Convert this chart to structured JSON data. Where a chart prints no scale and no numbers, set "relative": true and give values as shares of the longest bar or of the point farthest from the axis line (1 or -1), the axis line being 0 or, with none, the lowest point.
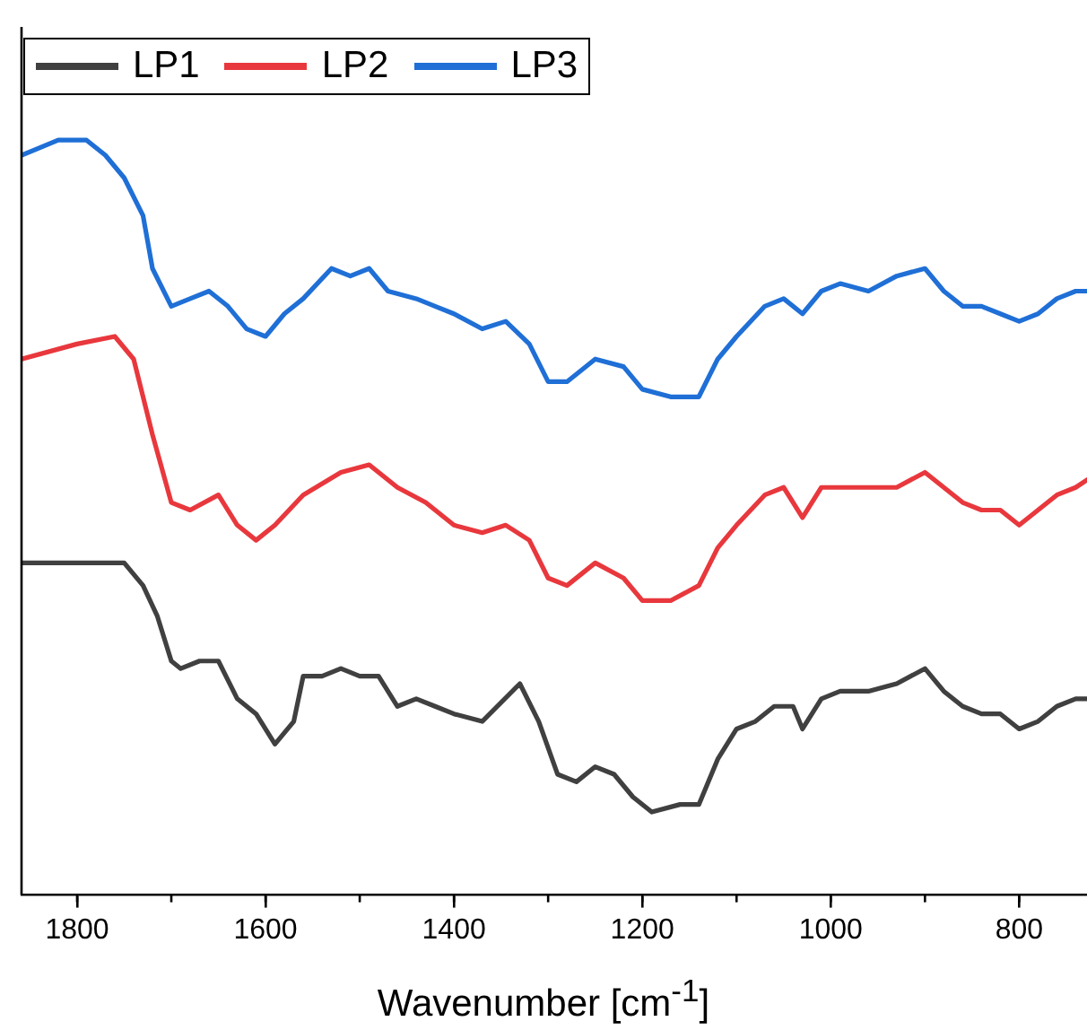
{
  "chart_data": {
    "type": "line",
    "xlabel": "Wavenumber [cm$^{-1}$]",
    "relative": true,
    "legend": "top left",
    "grid": false,
    "line_style": "solid",
    "xlim": [
      1859,
      728
    ],
    "xticks": [
      1800,
      1600,
      1400,
      1200,
      1000,
      800
    ],
    "tick_labels": "x",
    "series": [
      {
        "name": "LP1",
        "color": "#404040",
        "x": [
          1859,
          1800,
          1750,
          1730,
          1715,
          1700,
          1690,
          1670,
          1650,
          1630,
          1610,
          1590,
          1570,
          1560,
          1540,
          1520,
          1500,
          1480,
          1460,
          1440,
          1420,
          1400,
          1370,
          1330,
          1310,
          1290,
          1270,
          1250,
          1230,
          1210,
          1190,
          1160,
          1140,
          1120,
          1100,
          1080,
          1060,
          1040,
          1030,
          1010,
          990,
          960,
          930,
          900,
          880,
          860,
          840,
          820,
          800,
          780,
          760,
          740,
          728
        ],
        "values": [
          0.44,
          0.44,
          0.44,
          0.41,
          0.37,
          0.31,
          0.3,
          0.31,
          0.31,
          0.26,
          0.24,
          0.2,
          0.23,
          0.29,
          0.29,
          0.3,
          0.29,
          0.29,
          0.25,
          0.26,
          0.25,
          0.24,
          0.23,
          0.28,
          0.23,
          0.16,
          0.15,
          0.17,
          0.16,
          0.13,
          0.11,
          0.12,
          0.12,
          0.18,
          0.22,
          0.23,
          0.25,
          0.25,
          0.22,
          0.26,
          0.27,
          0.27,
          0.28,
          0.3,
          0.27,
          0.25,
          0.24,
          0.24,
          0.22,
          0.23,
          0.25,
          0.26,
          0.26
        ]
      },
      {
        "name": "LP2",
        "color": "#e8383d",
        "x": [
          1859,
          1800,
          1760,
          1740,
          1720,
          1700,
          1680,
          1650,
          1630,
          1610,
          1590,
          1560,
          1520,
          1490,
          1460,
          1430,
          1400,
          1370,
          1345,
          1320,
          1300,
          1280,
          1250,
          1220,
          1200,
          1170,
          1140,
          1120,
          1100,
          1070,
          1050,
          1030,
          1010,
          990,
          960,
          930,
          900,
          880,
          860,
          840,
          820,
          800,
          780,
          760,
          740,
          728
        ],
        "values": [
          0.71,
          0.73,
          0.74,
          0.71,
          0.61,
          0.52,
          0.51,
          0.53,
          0.49,
          0.47,
          0.49,
          0.53,
          0.56,
          0.57,
          0.54,
          0.52,
          0.49,
          0.48,
          0.49,
          0.47,
          0.42,
          0.41,
          0.44,
          0.42,
          0.39,
          0.39,
          0.41,
          0.46,
          0.49,
          0.53,
          0.54,
          0.5,
          0.54,
          0.54,
          0.54,
          0.54,
          0.56,
          0.54,
          0.52,
          0.51,
          0.51,
          0.49,
          0.51,
          0.53,
          0.54,
          0.55
        ]
      },
      {
        "name": "LP3",
        "color": "#1f6fd6",
        "x": [
          1859,
          1820,
          1790,
          1770,
          1750,
          1730,
          1720,
          1700,
          1680,
          1660,
          1640,
          1620,
          1600,
          1580,
          1560,
          1530,
          1510,
          1490,
          1470,
          1440,
          1420,
          1400,
          1370,
          1345,
          1320,
          1300,
          1280,
          1250,
          1220,
          1200,
          1170,
          1140,
          1120,
          1100,
          1070,
          1050,
          1030,
          1010,
          990,
          960,
          930,
          900,
          880,
          860,
          840,
          820,
          800,
          780,
          760,
          740,
          728
        ],
        "values": [
          0.98,
          1,
          1,
          0.98,
          0.95,
          0.9,
          0.83,
          0.78,
          0.79,
          0.8,
          0.78,
          0.75,
          0.74,
          0.77,
          0.79,
          0.83,
          0.82,
          0.83,
          0.8,
          0.79,
          0.78,
          0.77,
          0.75,
          0.76,
          0.73,
          0.68,
          0.68,
          0.71,
          0.7,
          0.67,
          0.66,
          0.66,
          0.71,
          0.74,
          0.78,
          0.79,
          0.77,
          0.8,
          0.81,
          0.8,
          0.82,
          0.83,
          0.8,
          0.78,
          0.78,
          0.77,
          0.76,
          0.77,
          0.79,
          0.8,
          0.8
        ]
      }
    ]
  }
}
